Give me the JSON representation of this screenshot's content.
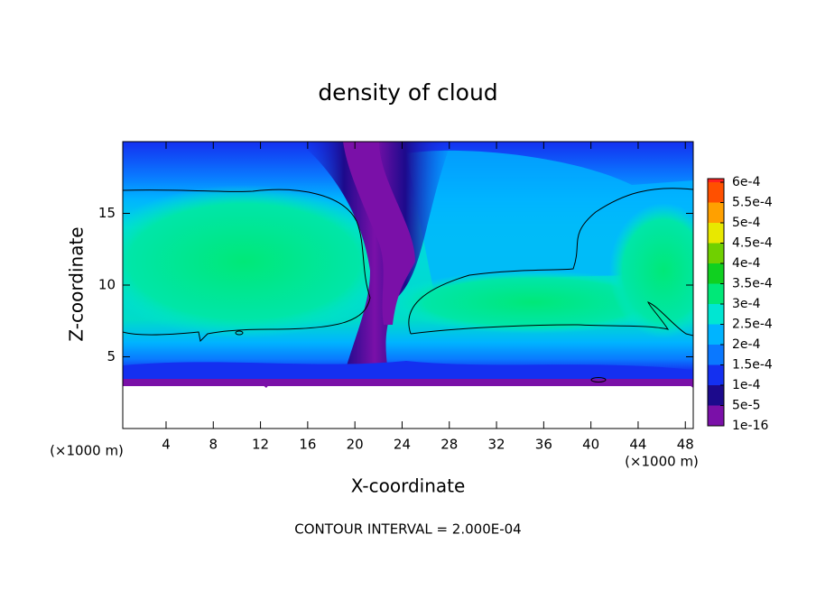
{
  "chart_data": {
    "type": "contour",
    "title": "density of cloud",
    "xlabel": "X-coordinate",
    "ylabel": "Z-coordinate",
    "x_unit": "(×1000 m)",
    "footnote": "CONTOUR INTERVAL = 2.000E-04",
    "xlim": [
      0.33,
      48.67
    ],
    "ylim": [
      0,
      20
    ],
    "xticks": [
      4,
      8,
      12,
      16,
      20,
      24,
      28,
      32,
      36,
      40,
      44,
      48
    ],
    "yticks": [
      5,
      10,
      15
    ],
    "colorbar": {
      "levels": [
        {
          "value": 1e-16,
          "label": "1e-16"
        },
        {
          "value": 5e-05,
          "label": "5e-5"
        },
        {
          "value": 0.0001,
          "label": "1e-4"
        },
        {
          "value": 0.00015,
          "label": "1.5e-4"
        },
        {
          "value": 0.0002,
          "label": "2e-4"
        },
        {
          "value": 0.00025,
          "label": "2.5e-4"
        },
        {
          "value": 0.0003,
          "label": "3e-4"
        },
        {
          "value": 0.00035,
          "label": "3.5e-4"
        },
        {
          "value": 0.0004,
          "label": "4e-4"
        },
        {
          "value": 0.00045,
          "label": "4.5e-4"
        },
        {
          "value": 0.0005,
          "label": "5e-4"
        },
        {
          "value": 0.00055,
          "label": "5.5e-4"
        },
        {
          "value": 0.0006,
          "label": "6e-4"
        }
      ],
      "colors": [
        "#7a10a8",
        "#1c0a8c",
        "#1430f0",
        "#0a78ff",
        "#00b4ff",
        "#00e6d2",
        "#00e878",
        "#10d020",
        "#70d000",
        "#e8e800",
        "#ffa000",
        "#ff5000",
        "#ff2020",
        "#ff8888"
      ]
    }
  }
}
